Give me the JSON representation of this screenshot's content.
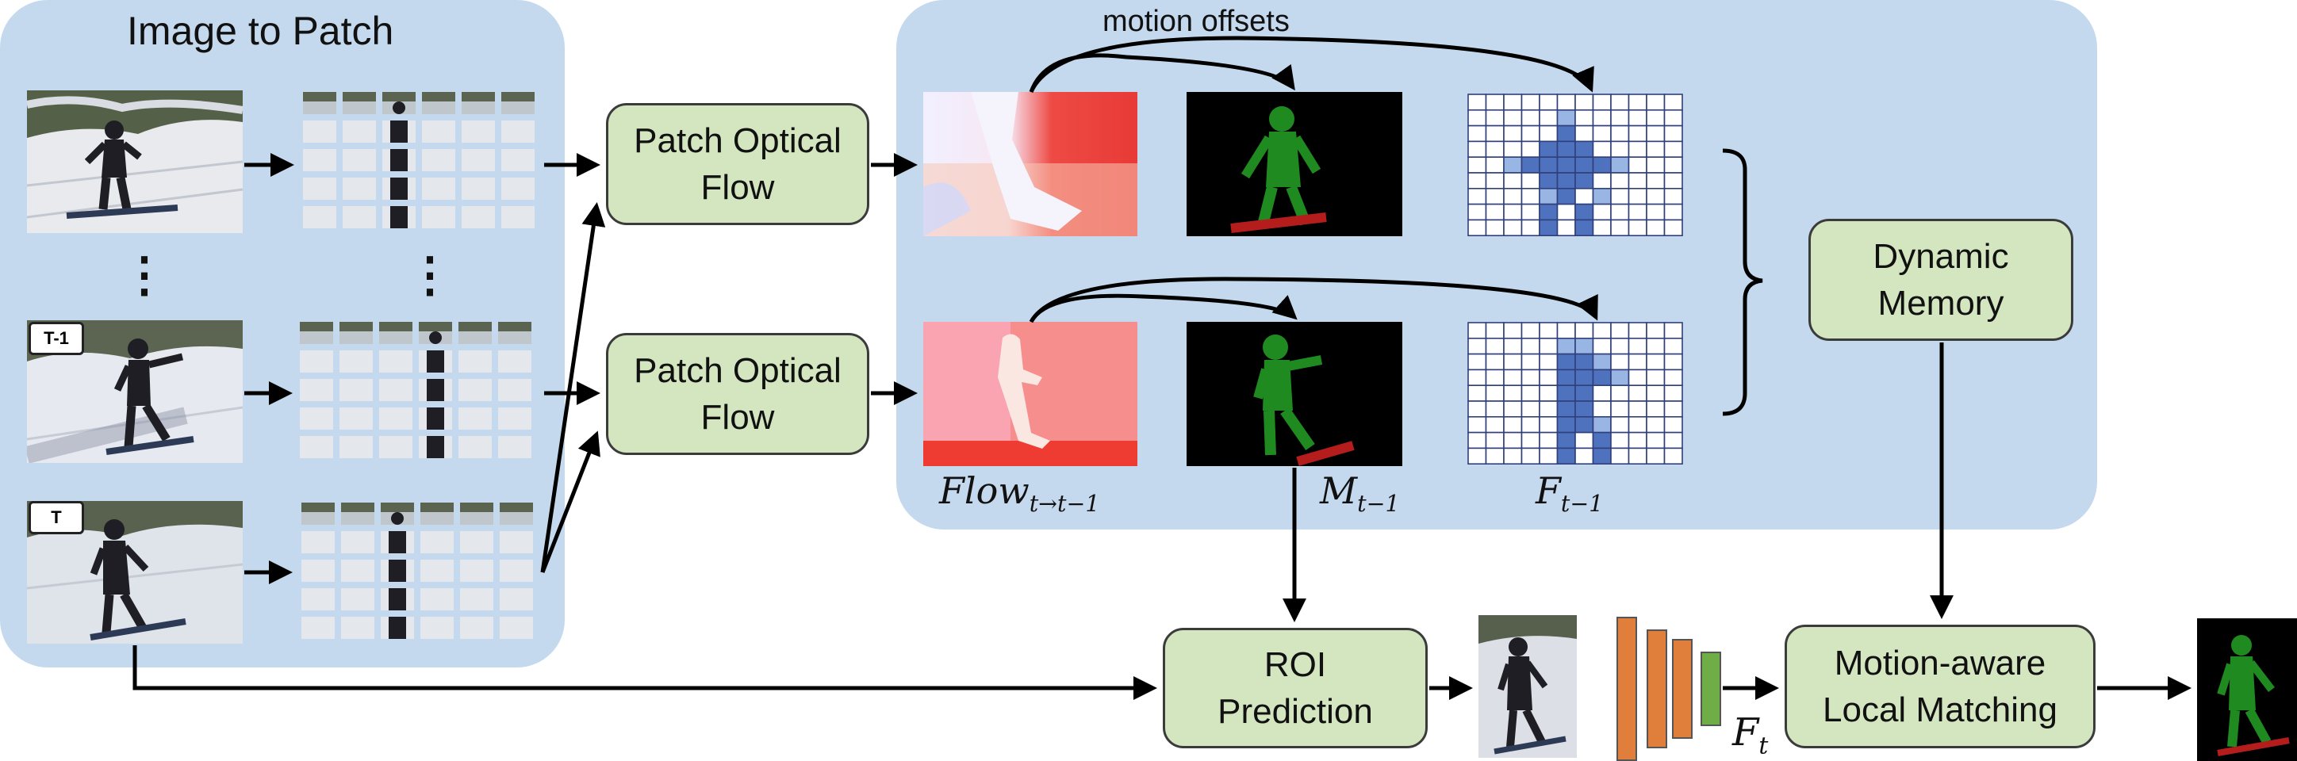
{
  "panels": {
    "left_title": "Image to Patch",
    "motion_label": "motion offsets"
  },
  "boxes": {
    "pof_top": "Patch Optical\nFlow",
    "pof_bottom": "Patch Optical\nFlow",
    "dynamic_memory": "Dynamic\nMemory",
    "roi": "ROI\nPrediction",
    "mlm": "Motion-aware\nLocal Matching"
  },
  "tags": {
    "t_minus_1": "T-1",
    "t": "T"
  },
  "ellipsis": {
    "left": "⋮",
    "right": "⋮"
  },
  "labels": {
    "flow_base": "Flow",
    "flow_sub": "t→t−1",
    "m_base": "M",
    "m_sub": "t−1",
    "f_base": "F",
    "f_sub": "t−1",
    "ft_base": "F",
    "ft_sub": "t"
  },
  "colors": {
    "panel": "#c5d9ee",
    "box": "#d3e6c0",
    "grid_dark": "#4f72bf",
    "grid_light": "#99b5e3",
    "mask_green": "#1f8a1f",
    "board_red": "#b51d1d",
    "bar_orange": "#e07f3c",
    "bar_green": "#6fad46"
  }
}
